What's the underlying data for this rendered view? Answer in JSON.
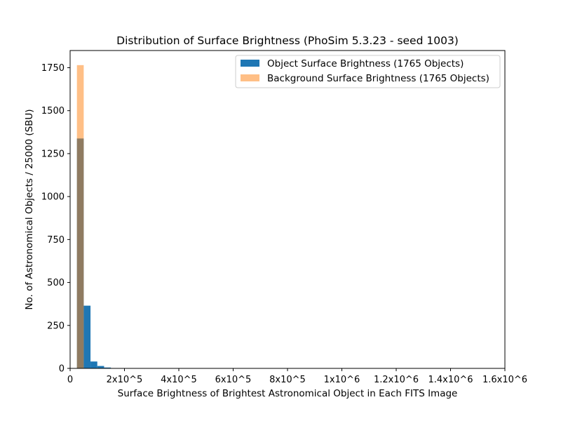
{
  "chart_data": {
    "type": "bar",
    "title": "Distribution of Surface Brightness (PhoSim 5.3.23 - seed 1003)",
    "xlabel": "Surface Brightness of Brightest Astronomical Object in Each FITS Image",
    "ylabel": "No. of Astronomical Objects / 25000 (SBU)",
    "xlim": [
      0,
      1600000
    ],
    "ylim": [
      0,
      1850
    ],
    "x_ticks": [
      {
        "value": 0,
        "label": "0"
      },
      {
        "value": 200000,
        "label": "2x10^5"
      },
      {
        "value": 400000,
        "label": "4x10^5"
      },
      {
        "value": 600000,
        "label": "6x10^5"
      },
      {
        "value": 800000,
        "label": "8x10^5"
      },
      {
        "value": 1000000,
        "label": "1x10^6"
      },
      {
        "value": 1200000,
        "label": "1.2x10^6"
      },
      {
        "value": 1400000,
        "label": "1.4x10^6"
      },
      {
        "value": 1600000,
        "label": "1.6x10^6"
      }
    ],
    "y_ticks": [
      {
        "value": 0,
        "label": "0"
      },
      {
        "value": 250,
        "label": "250"
      },
      {
        "value": 500,
        "label": "500"
      },
      {
        "value": 750,
        "label": "750"
      },
      {
        "value": 1000,
        "label": "1000"
      },
      {
        "value": 1250,
        "label": "1250"
      },
      {
        "value": 1500,
        "label": "1500"
      },
      {
        "value": 1750,
        "label": "1750"
      }
    ],
    "legend_position": "top-right",
    "series": [
      {
        "name": "Object Surface Brightness (1765 Objects)",
        "color": "#1f77b4",
        "opacity": 1,
        "bins": [
          {
            "x0": 25000,
            "x1": 50000,
            "count": 1338
          },
          {
            "x0": 50000,
            "x1": 75000,
            "count": 365
          },
          {
            "x0": 75000,
            "x1": 100000,
            "count": 40
          },
          {
            "x0": 100000,
            "x1": 125000,
            "count": 14
          },
          {
            "x0": 125000,
            "x1": 150000,
            "count": 5
          },
          {
            "x0": 150000,
            "x1": 175000,
            "count": 2
          },
          {
            "x0": 175000,
            "x1": 200000,
            "count": 1
          }
        ]
      },
      {
        "name": "Background Surface Brightness (1765 Objects)",
        "color": "#ff7f0e",
        "opacity": 0.5,
        "bins": [
          {
            "x0": 25000,
            "x1": 50000,
            "count": 1765
          }
        ]
      }
    ]
  }
}
